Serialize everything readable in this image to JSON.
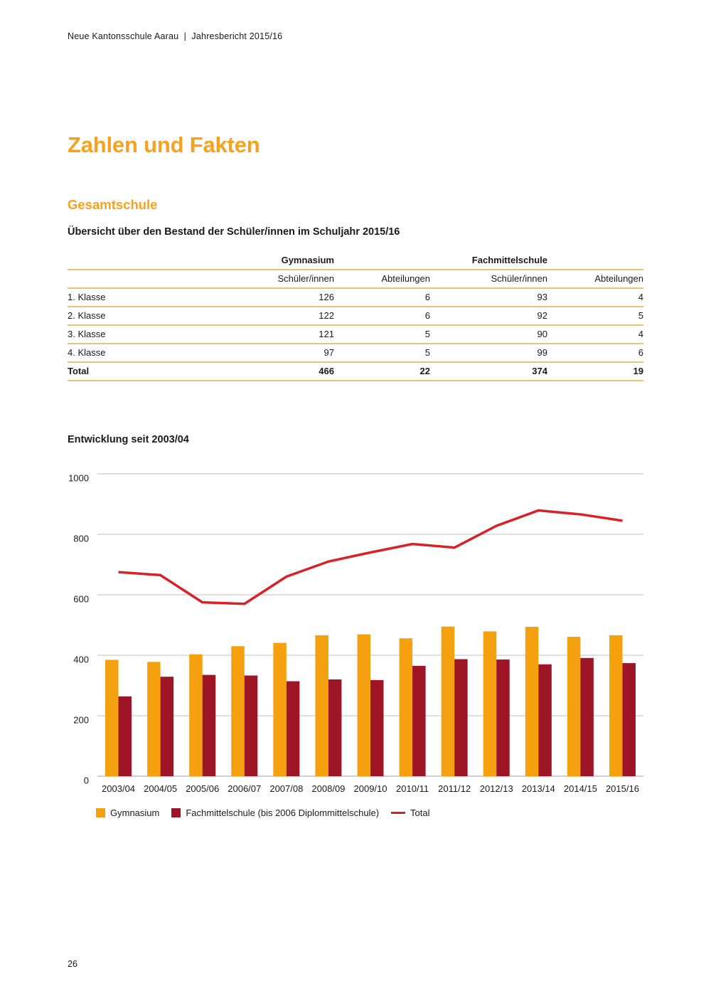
{
  "header": {
    "text": "Neue Kantonsschule Aarau  |  Jahresbericht 2015/16"
  },
  "title": "Zahlen und Fakten",
  "section": {
    "title": "Gesamtschule",
    "lead": "Übersicht über den Bestand der Schüler/innen im Schuljahr 2015/16"
  },
  "table": {
    "group_headers": [
      "Gymnasium",
      "Fachmittelschule"
    ],
    "col_headers": [
      "Schüler/innen",
      "Abteilungen",
      "Schüler/innen",
      "Abteilungen"
    ],
    "rows": [
      {
        "label": "1. Klasse",
        "values": [
          "126",
          "6",
          "93",
          "4"
        ]
      },
      {
        "label": "2. Klasse",
        "values": [
          "122",
          "6",
          "92",
          "5"
        ]
      },
      {
        "label": "3. Klasse",
        "values": [
          "121",
          "5",
          "90",
          "4"
        ]
      },
      {
        "label": "4. Klasse",
        "values": [
          "97",
          "5",
          "99",
          "6"
        ]
      }
    ],
    "total": {
      "label": "Total",
      "values": [
        "466",
        "22",
        "374",
        "19"
      ]
    }
  },
  "chart_heading": "Entwicklung seit 2003/04",
  "chart_data": {
    "type": "bar",
    "title": "Entwicklung seit 2003/04",
    "categories": [
      "2003/04",
      "2004/05",
      "2005/06",
      "2006/07",
      "2007/08",
      "2008/09",
      "2009/10",
      "2010/11",
      "2011/12",
      "2012/13",
      "2013/14",
      "2014/15",
      "2015/16"
    ],
    "series": [
      {
        "name": "Gymnasium",
        "type": "bar",
        "color": "#F5A00F",
        "values": [
          385,
          378,
          403,
          430,
          441,
          466,
          469,
          456,
          495,
          479,
          494,
          461,
          466
        ]
      },
      {
        "name": "Fachmittelschule (bis 2006 Diplommittelschule)",
        "type": "bar",
        "color": "#9E1526",
        "values": [
          264,
          329,
          335,
          333,
          314,
          320,
          318,
          365,
          387,
          386,
          370,
          391,
          374
        ]
      },
      {
        "name": "Total",
        "type": "line",
        "color": "#D7222A",
        "values": [
          675,
          665,
          575,
          570,
          660,
          710,
          740,
          768,
          756,
          828,
          879,
          866,
          845
        ]
      }
    ],
    "xlabel": "",
    "ylabel": "",
    "ylim": [
      0,
      1000
    ],
    "yticks": [
      0,
      200,
      400,
      600,
      800,
      1000
    ],
    "grid": true,
    "legend_position": "bottom"
  },
  "colors": {
    "accent_orange": "#F7A21E",
    "bar_orange": "#F5A00F",
    "bar_darkred": "#9E1526",
    "line_red": "#D7222A",
    "table_rule": "#E4C379",
    "grid_gray": "#CCCCCC",
    "baseline_gray": "#B5B5B5",
    "text": "#1A1A1A"
  },
  "footer": {
    "page_number": "26"
  }
}
